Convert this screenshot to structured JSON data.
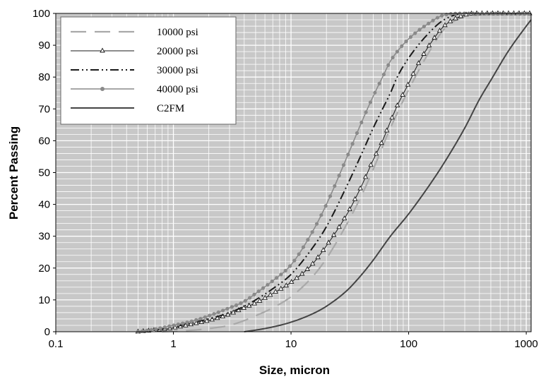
{
  "chart_data": {
    "type": "line",
    "xscale": "log",
    "xlim": [
      0.1,
      1100
    ],
    "ylim": [
      0,
      100
    ],
    "xlabel": "Size, micron",
    "ylabel": "Percent Passing",
    "x_ticks": [
      "0.1",
      "1",
      "10",
      "100",
      "1000"
    ],
    "y_ticks": [
      "0",
      "10",
      "20",
      "30",
      "40",
      "50",
      "60",
      "70",
      "80",
      "90",
      "100"
    ],
    "grid": true,
    "legend_position": "top-left",
    "colors": {
      "plot_bg": "#c8c8c8",
      "grid": "#ffffff",
      "light_gray": "#a9a9a9",
      "dark": "#1a1a1a",
      "mid_gray": "#8a8a8a",
      "charcoal": "#444444"
    },
    "series": [
      {
        "name": "10000 psi",
        "style": "long-dash",
        "x": [
          0.8,
          1.5,
          2,
          3,
          4,
          5,
          7,
          10,
          15,
          20,
          30,
          40,
          50,
          70,
          100,
          150,
          200,
          300,
          400,
          500,
          700,
          1000,
          1100
        ],
        "y": [
          0,
          0.5,
          1,
          2,
          3.5,
          5,
          7.5,
          11,
          17,
          23,
          34,
          43,
          51,
          64,
          76,
          88,
          95,
          99,
          99.5,
          100,
          100,
          100,
          100
        ]
      },
      {
        "name": "20000 psi",
        "style": "triangle-markers",
        "x": [
          0.5,
          0.7,
          1,
          1.5,
          2,
          3,
          4,
          5,
          7,
          10,
          15,
          20,
          30,
          40,
          50,
          60,
          70,
          80,
          100,
          120,
          150,
          200,
          300,
          400,
          500,
          700,
          1000,
          1100
        ],
        "y": [
          0,
          0.5,
          1.2,
          2.5,
          3.5,
          5.5,
          7.5,
          9,
          12,
          15.5,
          21,
          27,
          37,
          46,
          54,
          60,
          66,
          71,
          78,
          84,
          90,
          96,
          99.5,
          100,
          100,
          100,
          100,
          100
        ]
      },
      {
        "name": "30000 psi",
        "style": "dash-dot-dot",
        "x": [
          0.5,
          0.7,
          1,
          1.5,
          2,
          3,
          4,
          5,
          7,
          10,
          15,
          20,
          30,
          40,
          50,
          60,
          70,
          80,
          100,
          150,
          200,
          300,
          400,
          500,
          700,
          1000,
          1100
        ],
        "y": [
          0,
          0.5,
          1.5,
          3,
          4,
          6,
          8,
          10,
          13.5,
          18,
          26,
          33,
          46,
          56,
          64,
          70,
          75,
          80,
          86,
          94,
          98,
          100,
          100,
          100,
          100,
          100,
          100
        ]
      },
      {
        "name": "40000 psi",
        "style": "dot-markers",
        "x": [
          0.5,
          0.7,
          1,
          1.5,
          2,
          3,
          4,
          5,
          7,
          10,
          15,
          20,
          30,
          40,
          50,
          60,
          70,
          80,
          100,
          150,
          200,
          300,
          400,
          500,
          700,
          1000,
          1100
        ],
        "y": [
          0,
          0.8,
          2,
          3.5,
          5,
          7.5,
          9.5,
          12,
          16,
          21,
          31,
          40,
          55,
          66,
          74,
          80,
          85,
          88,
          92,
          97,
          99.5,
          100,
          100,
          100,
          100,
          100,
          100
        ]
      },
      {
        "name": "C2FM",
        "style": "solid",
        "x": [
          4,
          5,
          7,
          10,
          15,
          20,
          30,
          40,
          50,
          70,
          100,
          150,
          200,
          300,
          400,
          500,
          700,
          1000,
          1100
        ],
        "y": [
          0,
          0.5,
          1.5,
          3,
          5.5,
          8,
          13,
          18,
          22.5,
          30,
          37,
          46,
          53,
          64,
          73,
          79,
          88,
          96,
          98
        ]
      }
    ]
  }
}
